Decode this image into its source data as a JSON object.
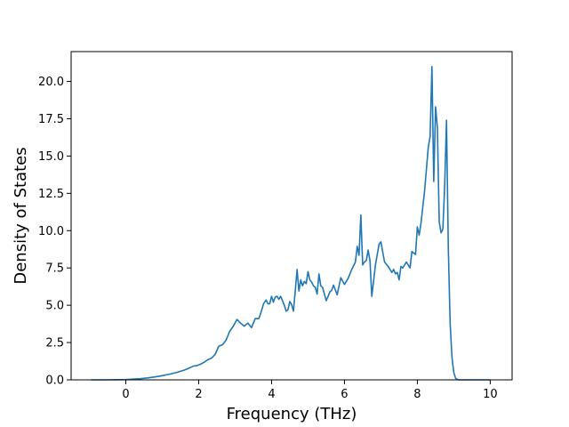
{
  "chart_data": {
    "type": "line",
    "title": "",
    "xlabel": "Frequency (THz)",
    "ylabel": "Density of States",
    "xlim": [
      -1.5,
      10.6
    ],
    "ylim": [
      0,
      22.0
    ],
    "xticks": [
      0,
      2,
      4,
      6,
      8,
      10
    ],
    "xtick_labels": [
      "0",
      "2",
      "4",
      "6",
      "8",
      "10"
    ],
    "yticks": [
      0,
      2.5,
      5,
      7.5,
      10,
      12.5,
      15,
      17.5,
      20
    ],
    "ytick_labels": [
      "0.0",
      "2.5",
      "5.0",
      "7.5",
      "10.0",
      "12.5",
      "15.0",
      "17.5",
      "20.0"
    ],
    "grid": false,
    "legend": "none",
    "color": "#1f77b4",
    "series": [
      {
        "x": [
          -0.95,
          -0.5,
          0.0,
          0.2,
          0.4,
          0.6,
          0.8,
          1.0,
          1.2,
          1.4,
          1.6,
          1.75,
          1.85,
          1.95,
          2.05,
          2.15,
          2.25,
          2.35,
          2.45,
          2.55,
          2.65,
          2.75,
          2.85,
          2.95,
          3.05,
          3.15,
          3.25,
          3.35,
          3.45,
          3.55,
          3.65,
          3.72,
          3.78,
          3.85,
          3.9,
          3.95,
          4.0,
          4.05,
          4.1,
          4.15,
          4.2,
          4.25,
          4.3,
          4.35,
          4.4,
          4.45,
          4.5,
          4.55,
          4.6,
          4.65,
          4.7,
          4.75,
          4.8,
          4.85,
          4.9,
          4.95,
          5.0,
          5.05,
          5.1,
          5.15,
          5.2,
          5.25,
          5.3,
          5.35,
          5.4,
          5.5,
          5.6,
          5.65,
          5.7,
          5.8,
          5.9,
          6.0,
          6.1,
          6.2,
          6.3,
          6.35,
          6.4,
          6.45,
          6.5,
          6.55,
          6.6,
          6.65,
          6.7,
          6.75,
          6.85,
          6.95,
          7.0,
          7.1,
          7.2,
          7.3,
          7.35,
          7.4,
          7.45,
          7.5,
          7.55,
          7.6,
          7.7,
          7.8,
          7.85,
          7.95,
          8.0,
          8.05,
          8.1,
          8.2,
          8.3,
          8.35,
          8.4,
          8.45,
          8.5,
          8.55,
          8.6,
          8.65,
          8.7,
          8.75,
          8.8,
          8.85,
          8.9,
          8.95,
          9.0,
          9.05,
          9.1,
          9.15,
          9.2,
          9.3,
          10.0
        ],
        "y": [
          0.0,
          0.0,
          0.02,
          0.05,
          0.08,
          0.13,
          0.2,
          0.28,
          0.38,
          0.5,
          0.65,
          0.8,
          0.92,
          0.95,
          1.05,
          1.18,
          1.35,
          1.45,
          1.7,
          2.25,
          2.35,
          2.65,
          3.25,
          3.6,
          4.05,
          3.8,
          3.6,
          3.8,
          3.5,
          4.1,
          4.1,
          4.6,
          5.1,
          5.35,
          5.1,
          5.1,
          5.6,
          5.2,
          5.55,
          5.6,
          5.4,
          5.6,
          5.3,
          5.0,
          4.6,
          4.7,
          5.25,
          5.05,
          4.6,
          5.95,
          7.4,
          5.95,
          6.7,
          6.3,
          6.6,
          6.45,
          7.25,
          6.7,
          6.55,
          6.3,
          6.2,
          5.75,
          7.1,
          6.3,
          6.2,
          5.3,
          5.9,
          6.0,
          6.35,
          5.7,
          6.85,
          6.4,
          6.8,
          7.4,
          7.9,
          8.95,
          8.35,
          11.05,
          7.7,
          7.9,
          8.0,
          8.7,
          8.0,
          5.6,
          7.7,
          9.1,
          9.25,
          7.9,
          7.6,
          7.2,
          7.4,
          7.1,
          7.2,
          6.7,
          7.6,
          7.5,
          7.9,
          7.5,
          8.6,
          8.4,
          10.25,
          9.7,
          10.5,
          12.7,
          15.6,
          16.3,
          21.0,
          13.3,
          18.3,
          16.9,
          10.6,
          9.85,
          10.1,
          13.0,
          17.4,
          8.8,
          3.8,
          1.5,
          0.5,
          0.1,
          0.02,
          0.0,
          0.0,
          0.0,
          0.0
        ]
      }
    ]
  }
}
